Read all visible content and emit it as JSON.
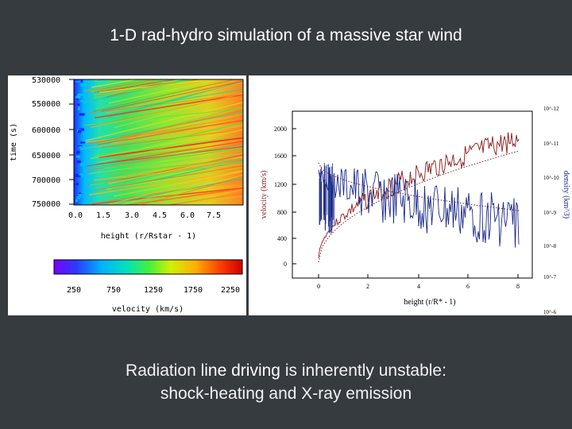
{
  "title": "1-D rad-hydro simulation of a massive star wind",
  "caption": {
    "line1_prefix": "Radiation ",
    "line1_emph": "line driving",
    "line1_suffix": " is inherently unstable:",
    "line2": "shock-heating and X-ray emission"
  },
  "left_panel": {
    "y_axis_label": "time (s)",
    "y_ticks": [
      "530000",
      "550000",
      "600000",
      "650000",
      "700000",
      "750000"
    ],
    "x_ticks": [
      "0.0",
      "1.5",
      "3.0",
      "4.5",
      "6.0",
      "7.5"
    ],
    "x_axis_label": "height (r/Rstar - 1)",
    "colorbar_ticks": [
      "250",
      "750",
      "1250",
      "1750",
      "2250"
    ],
    "colorbar_label": "velocity (km/s)",
    "colorbar_colors": [
      "#7a00ff",
      "#2a3cff",
      "#00b0ff",
      "#00e0c0",
      "#40f040",
      "#d0f000",
      "#ffb000",
      "#ff4000",
      "#d00000"
    ]
  },
  "right_panel": {
    "y_left_label": "velocity (km/s)",
    "y_left_ticks": [
      "0",
      "400",
      "800",
      "1200",
      "1600",
      "2000"
    ],
    "x_ticks": [
      "0",
      "2",
      "4",
      "6",
      "8"
    ],
    "x_axis_label": "height (r/R* - 1)",
    "y_right_label": "density (km^3)",
    "y_right_ticks": [
      "10^-6",
      "10^-7",
      "10^-8",
      "10^-9",
      "10^-10",
      "10^-11",
      "10^-12"
    ],
    "velocity_color": "#8b1a1a",
    "density_color": "#1a2a8b"
  }
}
